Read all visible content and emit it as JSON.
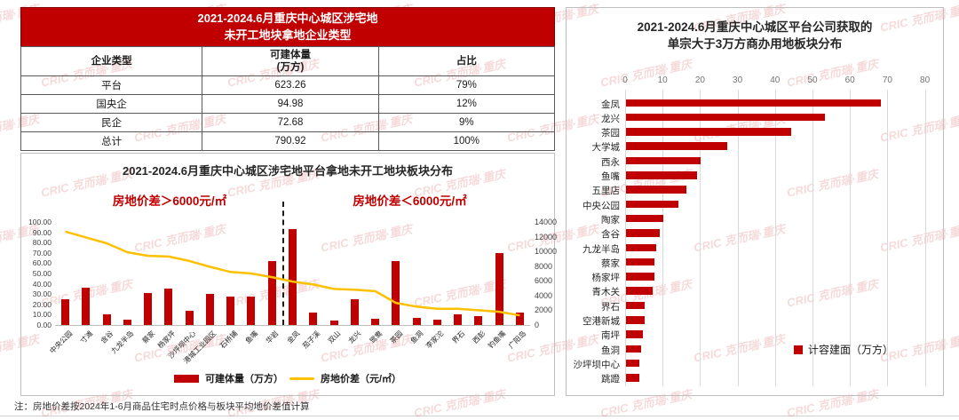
{
  "table": {
    "title_line1": "2021-2024.6月重庆中心城区涉宅地",
    "title_line2": "未开工地块拿地企业类型",
    "headers": [
      "企业类型",
      "可建体量\n(万方)",
      "占比"
    ],
    "rows": [
      [
        "平台",
        "623.26",
        "79%"
      ],
      [
        "国央企",
        "94.98",
        "12%"
      ],
      [
        "民企",
        "72.68",
        "9%"
      ],
      [
        "总计",
        "790.92",
        "100%"
      ]
    ]
  },
  "chart_data": [
    {
      "type": "bar+line-combo",
      "title": "2021-2024.6月重庆中心城区涉宅地平台拿地未开工地块板块分布",
      "annotation_left": "房地价差＞6000元/㎡",
      "annotation_right": "房地价差＜6000元/㎡",
      "divider_after_category": "华岩",
      "divider_gap_index": 11,
      "categories": [
        "中央公园",
        "寸滩",
        "含谷",
        "九龙半岛",
        "蔡家",
        "杨家坪",
        "沙坪坝中心",
        "港城工业园区",
        "石桥铺",
        "鱼嘴",
        "华岩",
        "金凤",
        "茄子溪",
        "双山",
        "龙兴",
        "鸳鸯",
        "茶园",
        "鱼洞",
        "李家沱",
        "界石",
        "西彭",
        "钓鱼嘴",
        "广阳岛"
      ],
      "series": [
        {
          "name": "可建体量（万方）",
          "type": "bar",
          "axis": "left",
          "values": [
            25,
            36,
            10,
            5,
            31,
            35,
            14,
            30,
            28,
            28,
            62,
            93,
            12,
            4,
            25,
            6,
            62,
            7,
            5,
            10,
            9,
            70,
            12
          ]
        },
        {
          "name": "房地价差（元/㎡）",
          "type": "line",
          "axis": "right",
          "values": [
            12700,
            11900,
            11100,
            9900,
            9400,
            9300,
            8700,
            7900,
            7200,
            7000,
            6500,
            5900,
            5500,
            4900,
            4800,
            4600,
            3000,
            2500,
            2200,
            2200,
            2000,
            1800,
            1300
          ]
        }
      ],
      "left_axis": {
        "min": 0,
        "max": 100,
        "step": 10,
        "decimals": 2
      },
      "right_axis": {
        "min": 0,
        "max": 14000,
        "step": 2000
      },
      "grid": false,
      "legend_position": "bottom-center"
    },
    {
      "type": "bar-horizontal",
      "title_line1": "2021-2024.6月重庆中心城区平台公司获取的",
      "title_line2": "单宗大于3万方商办用地板块分布",
      "categories": [
        "金凤",
        "龙兴",
        "茶园",
        "大学城",
        "西永",
        "鱼嘴",
        "五里店",
        "中央公园",
        "陶家",
        "含谷",
        "九龙半岛",
        "蔡家",
        "杨家坪",
        "青木关",
        "界石",
        "空港新城",
        "南坪",
        "鱼洞",
        "沙坪坝中心",
        "跳蹬"
      ],
      "values": [
        68,
        53,
        44,
        27,
        20,
        19,
        16,
        14,
        10,
        9,
        8,
        7.5,
        7.5,
        7,
        5,
        5,
        4.5,
        4,
        3.5,
        3.5
      ],
      "xlim": [
        0,
        80
      ],
      "xticks": [
        0,
        10,
        20,
        30,
        40,
        50,
        60,
        70,
        80
      ],
      "grid": true,
      "legend": "计容建面（万方）",
      "legend_position": "bottom-right"
    }
  ],
  "note": "注：房地价差按2024年1-6月商品住宅时点价格与板块平均地价差值计算",
  "watermark": "CRIC 克而瑞·重庆",
  "colors": {
    "brand_red": "#c00000",
    "line_yellow": "#ffc000",
    "grid_gray": "#d9d9d9"
  }
}
